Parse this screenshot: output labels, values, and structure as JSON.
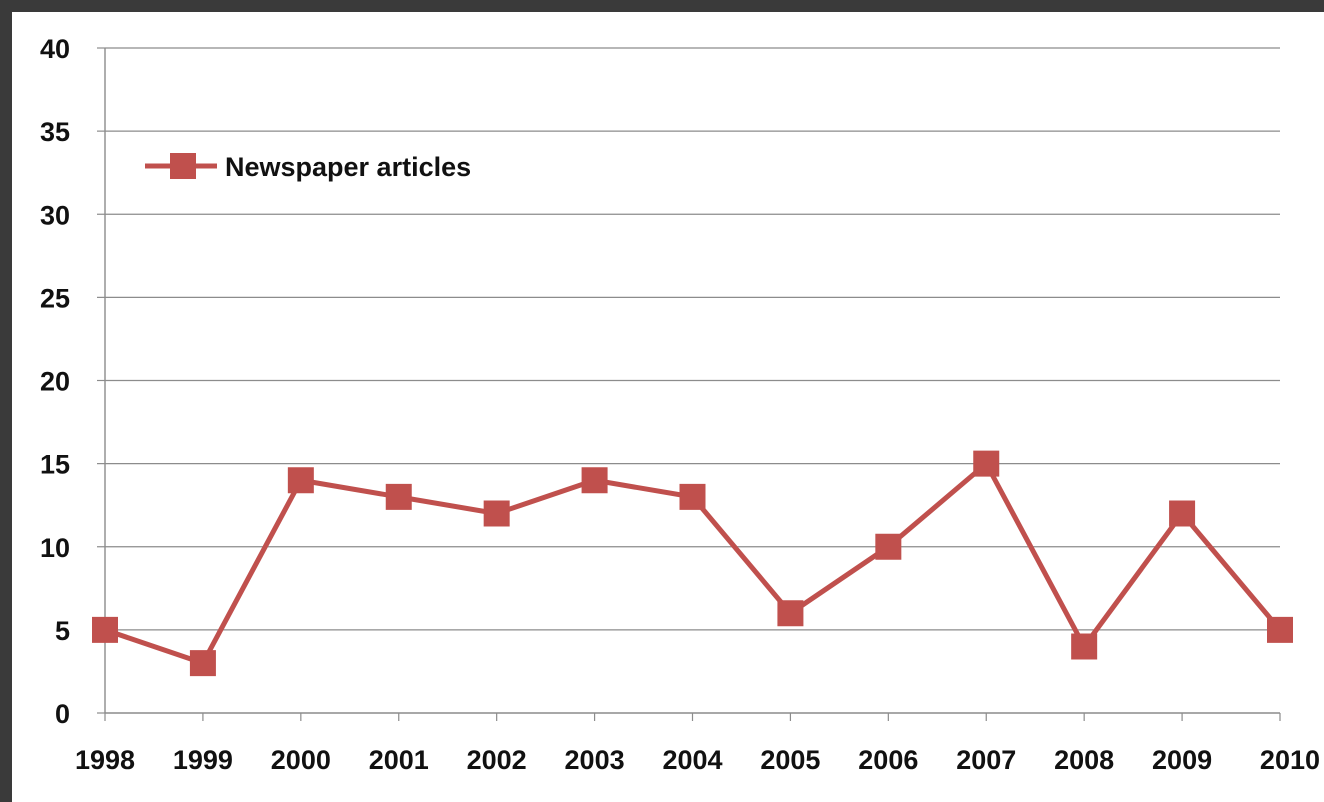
{
  "chart_data": {
    "type": "line",
    "title": "",
    "xlabel": "",
    "ylabel": "",
    "x": [
      "1998",
      "1999",
      "2000",
      "2001",
      "2002",
      "2003",
      "2004",
      "2005",
      "2006",
      "2007",
      "2008",
      "2009",
      "2010"
    ],
    "series": [
      {
        "name": "Newspaper articles",
        "values": [
          5,
          3,
          14,
          13,
          12,
          14,
          13,
          6,
          10,
          15,
          4,
          12,
          5
        ],
        "color": "#c0504d",
        "marker": "square"
      }
    ],
    "ylim": [
      0,
      40
    ],
    "yticks": [
      0,
      5,
      10,
      15,
      20,
      25,
      30,
      35,
      40
    ],
    "grid": "horizontal",
    "legend_position": "top-left"
  }
}
